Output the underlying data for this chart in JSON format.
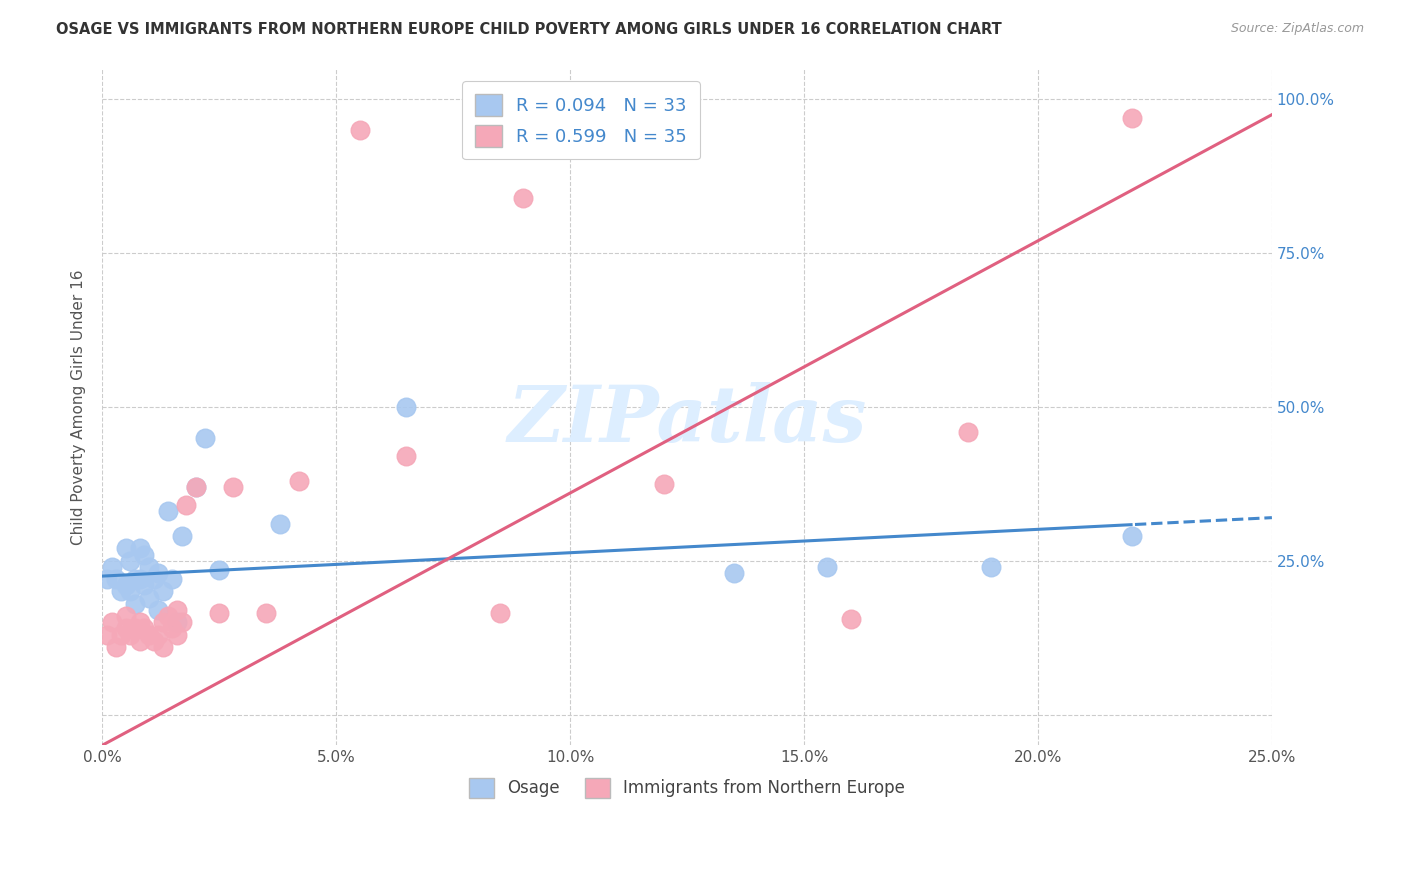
{
  "title": "OSAGE VS IMMIGRANTS FROM NORTHERN EUROPE CHILD POVERTY AMONG GIRLS UNDER 16 CORRELATION CHART",
  "source": "Source: ZipAtlas.com",
  "ylabel": "Child Poverty Among Girls Under 16",
  "xlim": [
    0.0,
    0.25
  ],
  "ylim": [
    -0.05,
    1.05
  ],
  "osage_R": 0.094,
  "osage_N": 33,
  "immigrants_R": 0.599,
  "immigrants_N": 35,
  "osage_color": "#a8c8f0",
  "immigrants_color": "#f5a8b8",
  "osage_line_color": "#4488cc",
  "immigrants_line_color": "#e06080",
  "background_color": "#ffffff",
  "grid_color": "#cccccc",
  "title_color": "#333333",
  "watermark_text": "ZIPatlas",
  "watermark_color": "#ddeeff",
  "osage_x": [
    0.001,
    0.002,
    0.003,
    0.004,
    0.005,
    0.005,
    0.006,
    0.006,
    0.007,
    0.007,
    0.008,
    0.008,
    0.009,
    0.009,
    0.01,
    0.01,
    0.011,
    0.012,
    0.012,
    0.013,
    0.014,
    0.015,
    0.016,
    0.017,
    0.02,
    0.022,
    0.025,
    0.038,
    0.065,
    0.135,
    0.155,
    0.19,
    0.22
  ],
  "osage_y": [
    0.22,
    0.24,
    0.22,
    0.2,
    0.21,
    0.27,
    0.25,
    0.2,
    0.22,
    0.18,
    0.27,
    0.22,
    0.26,
    0.21,
    0.19,
    0.24,
    0.22,
    0.17,
    0.23,
    0.2,
    0.33,
    0.22,
    0.15,
    0.29,
    0.37,
    0.45,
    0.235,
    0.31,
    0.5,
    0.23,
    0.24,
    0.24,
    0.29
  ],
  "immigrants_x": [
    0.001,
    0.002,
    0.003,
    0.004,
    0.005,
    0.005,
    0.006,
    0.007,
    0.008,
    0.008,
    0.009,
    0.01,
    0.011,
    0.012,
    0.013,
    0.013,
    0.014,
    0.015,
    0.016,
    0.016,
    0.017,
    0.018,
    0.02,
    0.025,
    0.028,
    0.035,
    0.042,
    0.055,
    0.065,
    0.085,
    0.09,
    0.12,
    0.16,
    0.185,
    0.22
  ],
  "immigrants_y": [
    0.13,
    0.15,
    0.11,
    0.13,
    0.14,
    0.16,
    0.13,
    0.14,
    0.15,
    0.12,
    0.14,
    0.13,
    0.12,
    0.13,
    0.15,
    0.11,
    0.16,
    0.14,
    0.13,
    0.17,
    0.15,
    0.34,
    0.37,
    0.165,
    0.37,
    0.165,
    0.38,
    0.95,
    0.42,
    0.165,
    0.84,
    0.375,
    0.155,
    0.46,
    0.97
  ],
  "osage_line_b": 0.225,
  "osage_line_m": 0.38,
  "immigrants_line_b": -0.05,
  "immigrants_line_m": 4.1,
  "ytick_vals": [
    0.0,
    0.25,
    0.5,
    0.75,
    1.0
  ],
  "xtick_vals": [
    0.0,
    0.05,
    0.1,
    0.15,
    0.2,
    0.25
  ]
}
